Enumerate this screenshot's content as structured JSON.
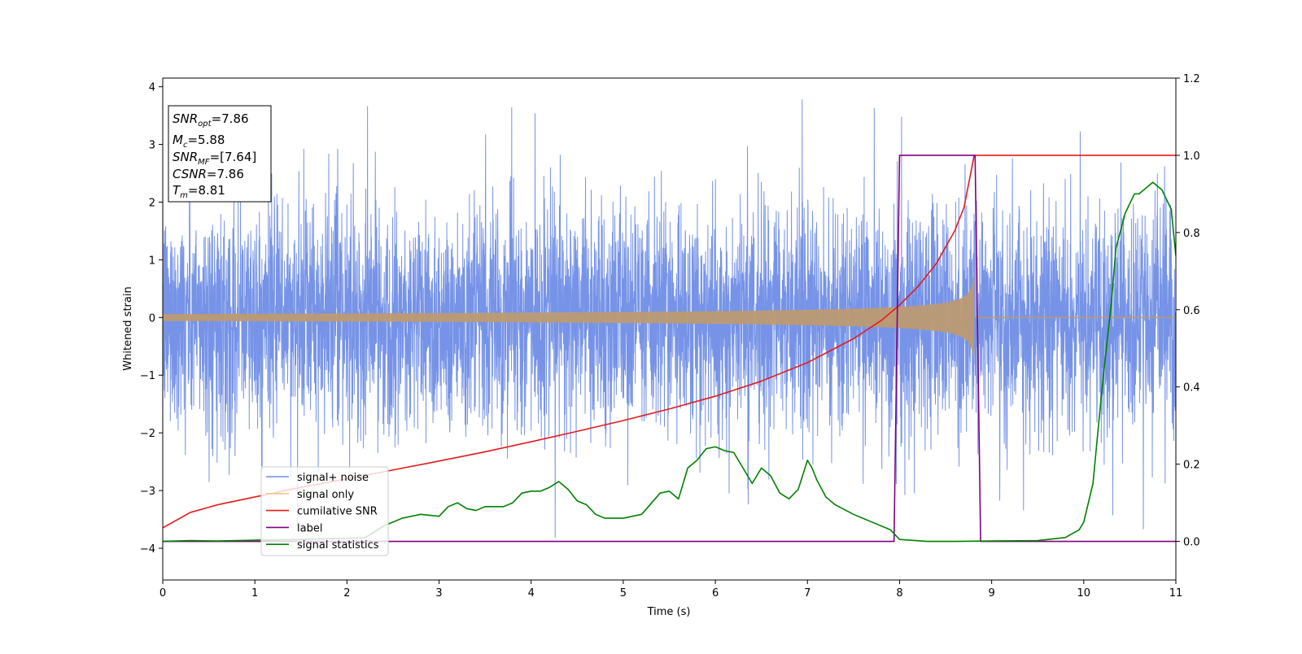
{
  "chart_data": {
    "type": "line",
    "xlabel": "Time (s)",
    "ylabel": "Whitened strain",
    "ylabel_right": "",
    "xlim": [
      0,
      11
    ],
    "ylim": [
      -4.55,
      4.15
    ],
    "ylim_right": [
      -0.1,
      1.2
    ],
    "xticks": [
      0,
      1,
      2,
      3,
      4,
      5,
      6,
      7,
      8,
      9,
      10,
      11
    ],
    "xtick_labels": [
      "0",
      "1",
      "2",
      "3",
      "4",
      "5",
      "6",
      "7",
      "8",
      "9",
      "10",
      "11"
    ],
    "yticks": [
      -4,
      -3,
      -2,
      -1,
      0,
      1,
      2,
      3,
      4
    ],
    "ytick_labels": [
      "−4",
      "−3",
      "−2",
      "−1",
      "0",
      "1",
      "2",
      "3",
      "4"
    ],
    "yticks_right": [
      0.0,
      0.2,
      0.4,
      0.6,
      0.8,
      1.0,
      1.2
    ],
    "ytick_labels_right": [
      "0.0",
      "0.2",
      "0.4",
      "0.6",
      "0.8",
      "1.0",
      "1.2"
    ],
    "grid": false,
    "legend_position": "lower-left",
    "annotation": {
      "position": "top-left",
      "lines": [
        {
          "main": "SNR",
          "sub": "opt",
          "rest": "=7.86"
        },
        {
          "main": "M",
          "sub": "c",
          "rest": "=5.88"
        },
        {
          "main": "SNR",
          "sub": "MF",
          "rest": "=[7.64]"
        },
        {
          "main": "CSNR",
          "sub": "",
          "rest": "=7.86"
        },
        {
          "main": "T",
          "sub": "m",
          "rest": "=8.81"
        }
      ]
    },
    "series": [
      {
        "name": "signal+ noise",
        "axis": "left",
        "color": "#6f8de6",
        "description_kind": "noise",
        "typical_range": [
          -2.3,
          2.3
        ],
        "peak_range": [
          -4.15,
          3.78
        ],
        "duration": [
          0,
          11
        ]
      },
      {
        "name": "signal only",
        "axis": "left",
        "color": "#f5c77e",
        "description_kind": "chirp",
        "amplitude_start": 0.06,
        "amplitude_end": 0.95,
        "merger_time": 8.81
      },
      {
        "name": "cumilative SNR",
        "axis": "right",
        "color": "#e6191c",
        "x": [
          0,
          0.3,
          0.6,
          1.0,
          1.5,
          2.0,
          2.5,
          3.0,
          3.5,
          4.0,
          4.5,
          5.0,
          5.5,
          6.0,
          6.5,
          7.0,
          7.5,
          7.8,
          8.0,
          8.2,
          8.4,
          8.6,
          8.7,
          8.81,
          9.0,
          10.0,
          11.0
        ],
        "y": [
          0.035,
          0.075,
          0.095,
          0.115,
          0.14,
          0.162,
          0.185,
          0.208,
          0.232,
          0.258,
          0.285,
          0.313,
          0.343,
          0.376,
          0.415,
          0.463,
          0.525,
          0.572,
          0.612,
          0.66,
          0.72,
          0.805,
          0.865,
          1.0,
          1.0,
          1.0,
          1.0
        ]
      },
      {
        "name": "label",
        "axis": "right",
        "color": "#800080",
        "x": [
          0,
          7.94,
          8.0,
          8.82,
          8.88,
          11.0
        ],
        "y": [
          0,
          0,
          1.0,
          1.0,
          0,
          0
        ]
      },
      {
        "name": "signal statistics",
        "axis": "right",
        "color": "#008000",
        "x": [
          0,
          0.3,
          0.6,
          1.0,
          1.5,
          2.0,
          2.2,
          2.4,
          2.6,
          2.8,
          3.0,
          3.1,
          3.2,
          3.3,
          3.4,
          3.5,
          3.7,
          3.8,
          3.9,
          4.0,
          4.1,
          4.2,
          4.3,
          4.4,
          4.5,
          4.6,
          4.7,
          4.8,
          5.0,
          5.2,
          5.4,
          5.5,
          5.6,
          5.7,
          5.8,
          5.9,
          6.0,
          6.1,
          6.2,
          6.3,
          6.4,
          6.5,
          6.6,
          6.7,
          6.8,
          6.9,
          7.0,
          7.05,
          7.1,
          7.2,
          7.3,
          7.5,
          7.7,
          7.9,
          8.0,
          8.3,
          8.6,
          9.0,
          9.5,
          9.8,
          9.95,
          10.0,
          10.1,
          10.2,
          10.3,
          10.35,
          10.45,
          10.55,
          10.6,
          10.75,
          10.85,
          10.95,
          11.0
        ],
        "y": [
          0.0,
          0.002,
          0.001,
          0.003,
          0.005,
          0.008,
          0.01,
          0.04,
          0.06,
          0.07,
          0.065,
          0.09,
          0.1,
          0.085,
          0.08,
          0.09,
          0.09,
          0.1,
          0.125,
          0.13,
          0.13,
          0.14,
          0.155,
          0.135,
          0.105,
          0.095,
          0.07,
          0.06,
          0.06,
          0.07,
          0.125,
          0.13,
          0.11,
          0.19,
          0.21,
          0.24,
          0.245,
          0.235,
          0.23,
          0.19,
          0.15,
          0.19,
          0.17,
          0.125,
          0.11,
          0.135,
          0.21,
          0.19,
          0.16,
          0.115,
          0.095,
          0.07,
          0.05,
          0.03,
          0.005,
          0.0,
          0.0,
          0.001,
          0.002,
          0.01,
          0.03,
          0.05,
          0.15,
          0.4,
          0.62,
          0.76,
          0.85,
          0.9,
          0.9,
          0.93,
          0.91,
          0.86,
          0.74
        ]
      }
    ]
  }
}
